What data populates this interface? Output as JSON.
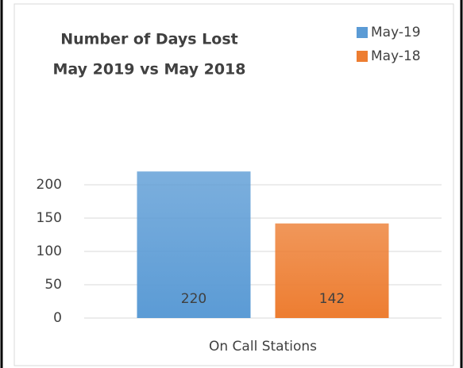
{
  "chart_data": {
    "type": "bar",
    "title": [
      "Number of Days Lost",
      "May 2019 vs May 2018"
    ],
    "categories": [
      "On Call Stations"
    ],
    "series": [
      {
        "name": "May-19",
        "color": "#5b9bd5",
        "values": [
          220
        ]
      },
      {
        "name": "May-18",
        "color": "#ed7d31",
        "values": [
          142
        ]
      }
    ],
    "ylim": [
      0,
      250
    ],
    "yticks": [
      0,
      50,
      100,
      150,
      200
    ],
    "grid": true,
    "legend": "top-right"
  }
}
